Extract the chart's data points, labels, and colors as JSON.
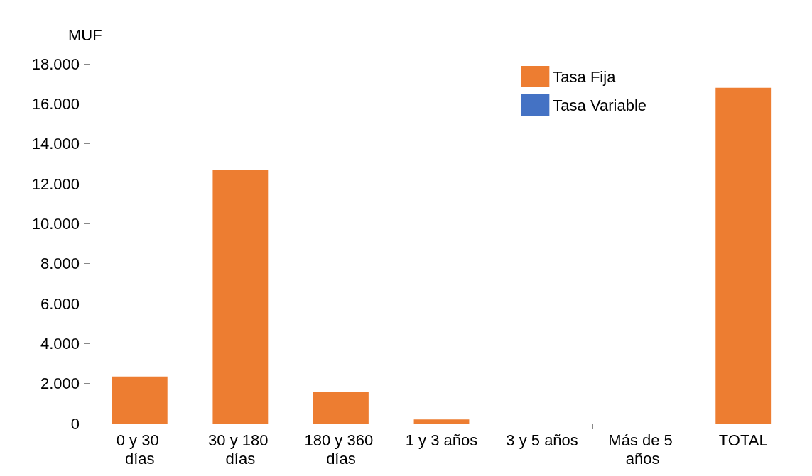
{
  "chart_data": {
    "type": "bar",
    "ylabel": "MUF",
    "categories": [
      "0 y 30 días",
      "30 y 180 días",
      "180 y 360 días",
      "1 y 3 años",
      "3 y 5 años",
      "Más de 5 años",
      "TOTAL"
    ],
    "series": [
      {
        "name": "Tasa Fija",
        "color": "#ed7d31",
        "values": [
          2350,
          12700,
          1600,
          200,
          0,
          0,
          16800
        ]
      },
      {
        "name": "Tasa Variable",
        "color": "#4472c4",
        "values": [
          0,
          0,
          0,
          0,
          0,
          0,
          0
        ]
      }
    ],
    "stacked": true,
    "ylim": [
      0,
      18000
    ],
    "yticks": [
      0,
      {
        "value": 2000,
        "label": "2.000"
      },
      {
        "value": 4000,
        "label": "4.000"
      },
      {
        "value": 6000,
        "label": "6.000"
      },
      {
        "value": 8000,
        "label": "8.000"
      },
      {
        "value": 10000,
        "label": "10.000"
      },
      {
        "value": 12000,
        "label": "12.000"
      },
      {
        "value": 14000,
        "label": "14.000"
      },
      {
        "value": 16000,
        "label": "16.000"
      },
      {
        "value": 18000,
        "label": "18.000"
      }
    ],
    "grid": false,
    "legend": "top right"
  }
}
